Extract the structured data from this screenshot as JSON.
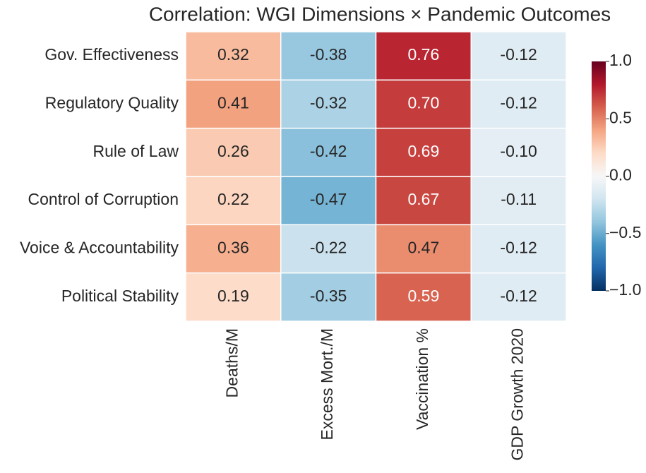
{
  "chart_data": {
    "type": "heatmap",
    "title": "Correlation: WGI Dimensions × Pandemic Outcomes",
    "rows": [
      "Gov. Effectiveness",
      "Regulatory Quality",
      "Rule of Law",
      "Control of Corruption",
      "Voice & Accountability",
      "Political Stability"
    ],
    "columns": [
      "Deaths/M",
      "Excess Mort./M",
      "Vaccination %",
      "GDP Growth 2020"
    ],
    "values": [
      [
        0.32,
        -0.38,
        0.76,
        -0.12
      ],
      [
        0.41,
        -0.32,
        0.7,
        -0.12
      ],
      [
        0.26,
        -0.42,
        0.69,
        -0.1
      ],
      [
        0.22,
        -0.47,
        0.67,
        -0.11
      ],
      [
        0.36,
        -0.22,
        0.47,
        -0.12
      ],
      [
        0.19,
        -0.35,
        0.59,
        -0.12
      ]
    ],
    "value_labels": [
      [
        "0.32",
        "-0.38",
        "0.76",
        "-0.12"
      ],
      [
        "0.41",
        "-0.32",
        "0.70",
        "-0.12"
      ],
      [
        "0.26",
        "-0.42",
        "0.69",
        "-0.10"
      ],
      [
        "0.22",
        "-0.47",
        "0.67",
        "-0.11"
      ],
      [
        "0.36",
        "-0.22",
        "0.47",
        "-0.12"
      ],
      [
        "0.19",
        "-0.35",
        "0.59",
        "-0.12"
      ]
    ],
    "clim": [
      -1,
      1
    ],
    "cticks": [
      {
        "value": -1,
        "label": "−1.0"
      },
      {
        "value": -0.5,
        "label": "−0.5"
      },
      {
        "value": 0,
        "label": "0.0"
      },
      {
        "value": 0.5,
        "label": "0.5"
      },
      {
        "value": 1,
        "label": "1.0"
      }
    ],
    "colormap": [
      "#053061",
      "#2166ac",
      "#4393c3",
      "#92c5de",
      "#d1e5f0",
      "#f7f7f7",
      "#fddbc7",
      "#f4a582",
      "#d6604d",
      "#b2182b",
      "#67001f"
    ]
  }
}
